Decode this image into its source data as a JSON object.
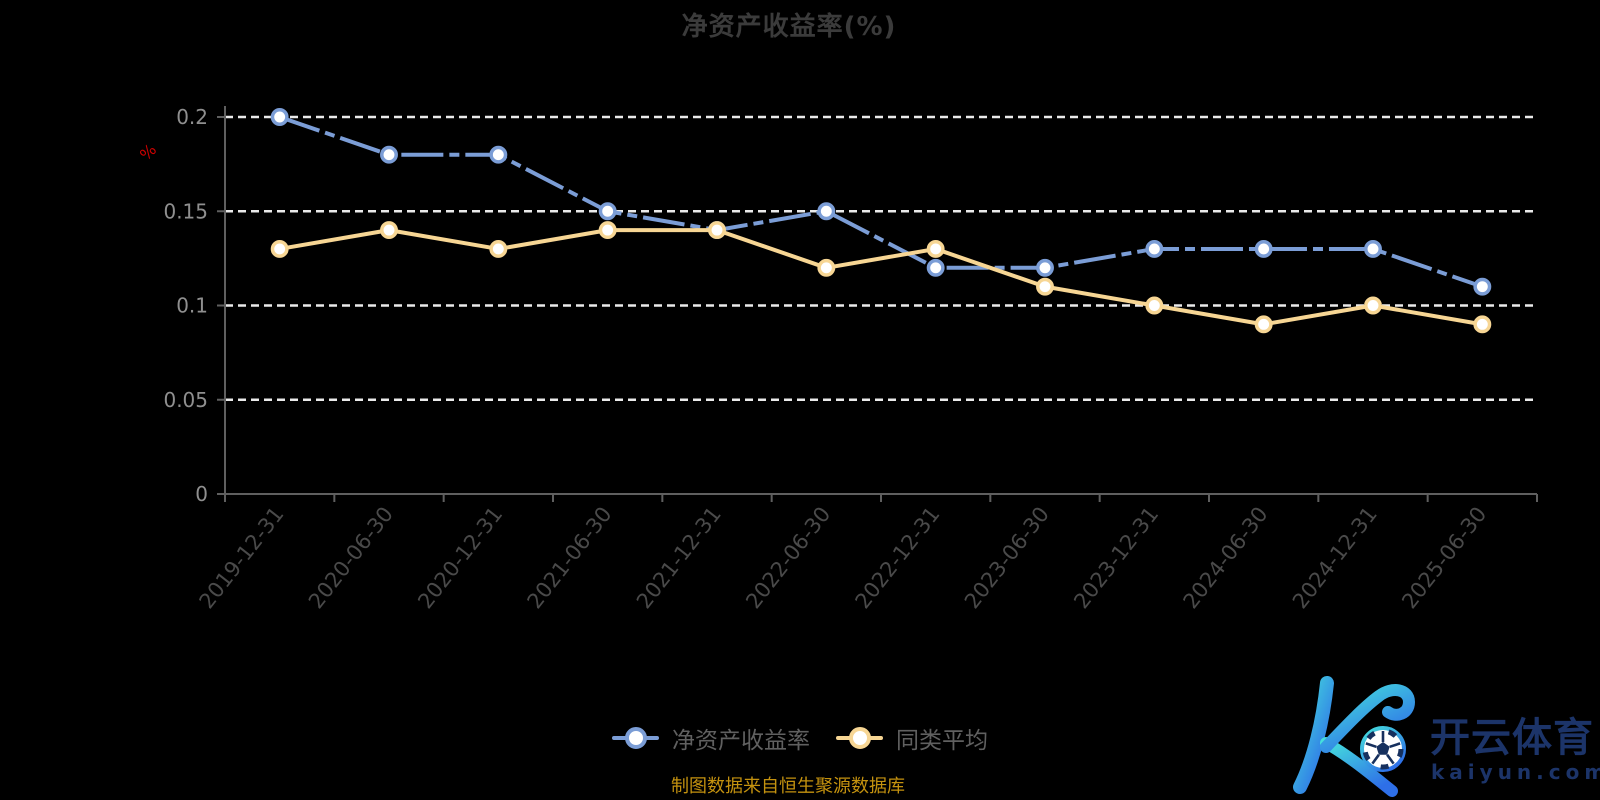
{
  "title": {
    "text": "净资产收益率(%)"
  },
  "chart_data": {
    "type": "line",
    "title": "净资产收益率(%)",
    "categories": [
      "2019-12-31",
      "2020-06-30",
      "2020-12-31",
      "2021-06-30",
      "2021-12-31",
      "2022-06-30",
      "2022-12-31",
      "2023-06-30",
      "2023-12-31",
      "2024-06-30",
      "2024-12-31",
      "2025-06-30"
    ],
    "series": [
      {
        "name": "净资产收益率",
        "color": "#7B9DD6",
        "line_style": "dashed",
        "values": [
          0.2,
          0.18,
          0.18,
          0.15,
          0.14,
          0.15,
          0.12,
          0.12,
          0.13,
          0.13,
          0.13,
          0.11
        ]
      },
      {
        "name": "同类平均",
        "color": "#F7D694",
        "line_style": "solid",
        "values": [
          0.13,
          0.14,
          0.13,
          0.14,
          0.14,
          0.12,
          0.13,
          0.11,
          0.1,
          0.09,
          0.1,
          0.09
        ]
      }
    ],
    "xlabel": "",
    "ylabel": "%",
    "ylim": [
      0,
      0.2
    ],
    "y_ticks": [
      0,
      0.05,
      0.1,
      0.15,
      0.2
    ],
    "grid": true,
    "legend_position": "bottom",
    "colors": {
      "grid": "#eaeaea",
      "axis": "#5f5f5f",
      "tick_label_y": "#8f8f8f",
      "tick_label_x": "#4a4a4a",
      "unit": "#cc0000",
      "marker_fill": "#ffffff"
    }
  },
  "legend": {
    "items": [
      {
        "label": "净资产收益率",
        "color": "#7B9DD6"
      },
      {
        "label": "同类平均",
        "color": "#F7D694"
      }
    ]
  },
  "footer": {
    "source_text": "制图数据来自恒生聚源数据库",
    "color": "#c4920f"
  },
  "logo": {
    "brand_cn": "开云体育",
    "brand_url": "kaiyun.com",
    "text_color": "#1c3469",
    "ball_color": "#16305e",
    "gradient_start": "#45E0DC",
    "gradient_end": "#2E6FE8"
  }
}
